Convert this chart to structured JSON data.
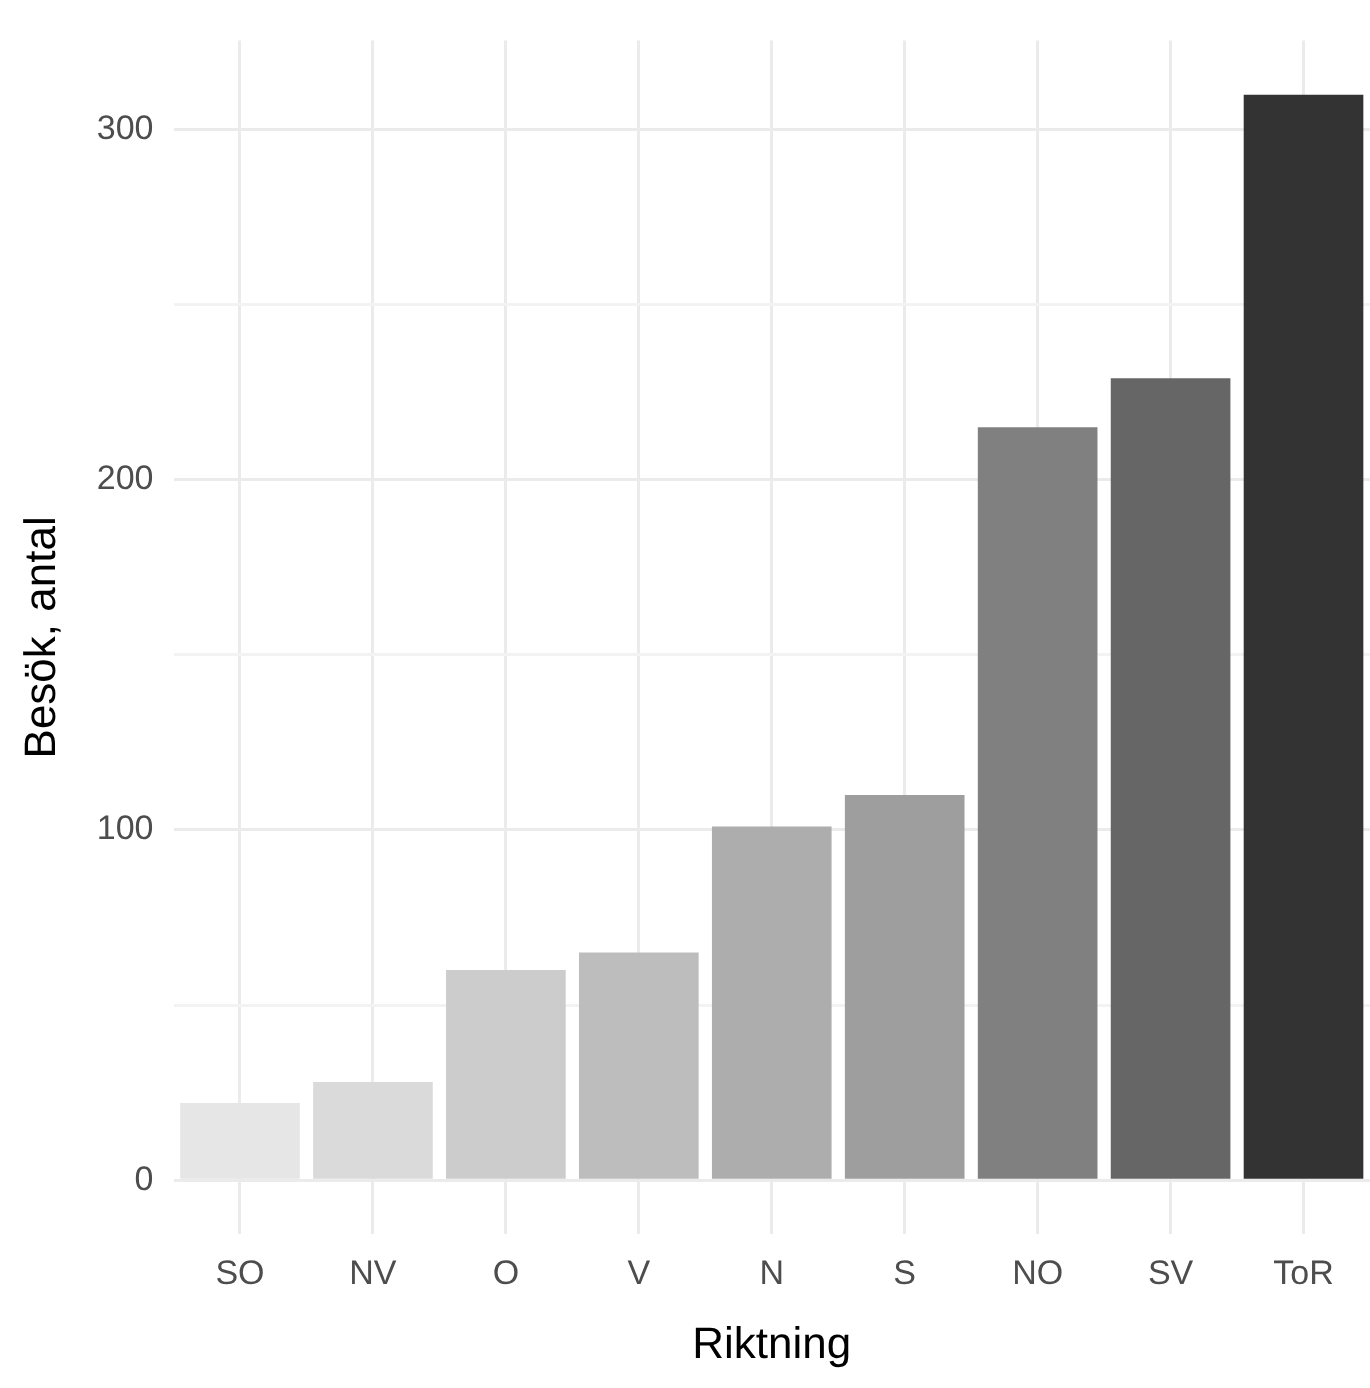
{
  "chart_data": {
    "type": "bar",
    "xlabel": "Riktning",
    "ylabel": "Besök, antal",
    "categories": [
      "SO",
      "NV",
      "O",
      "V",
      "N",
      "S",
      "NO",
      "SV",
      "ToR"
    ],
    "values": [
      22,
      28,
      60,
      65,
      101,
      110,
      215,
      229,
      310
    ],
    "colors": [
      "#e6e6e6",
      "#dadada",
      "#cccccc",
      "#bdbdbd",
      "#adadad",
      "#9e9e9e",
      "#808080",
      "#666666",
      "#333333"
    ],
    "ylim": [
      -15.5,
      325.5
    ],
    "yticks": [
      0,
      {
        "value": 50,
        "label": null
      },
      100,
      {
        "value": 150,
        "label": null
      },
      200,
      {
        "value": 250,
        "label": null
      },
      300
    ],
    "grid": true
  }
}
